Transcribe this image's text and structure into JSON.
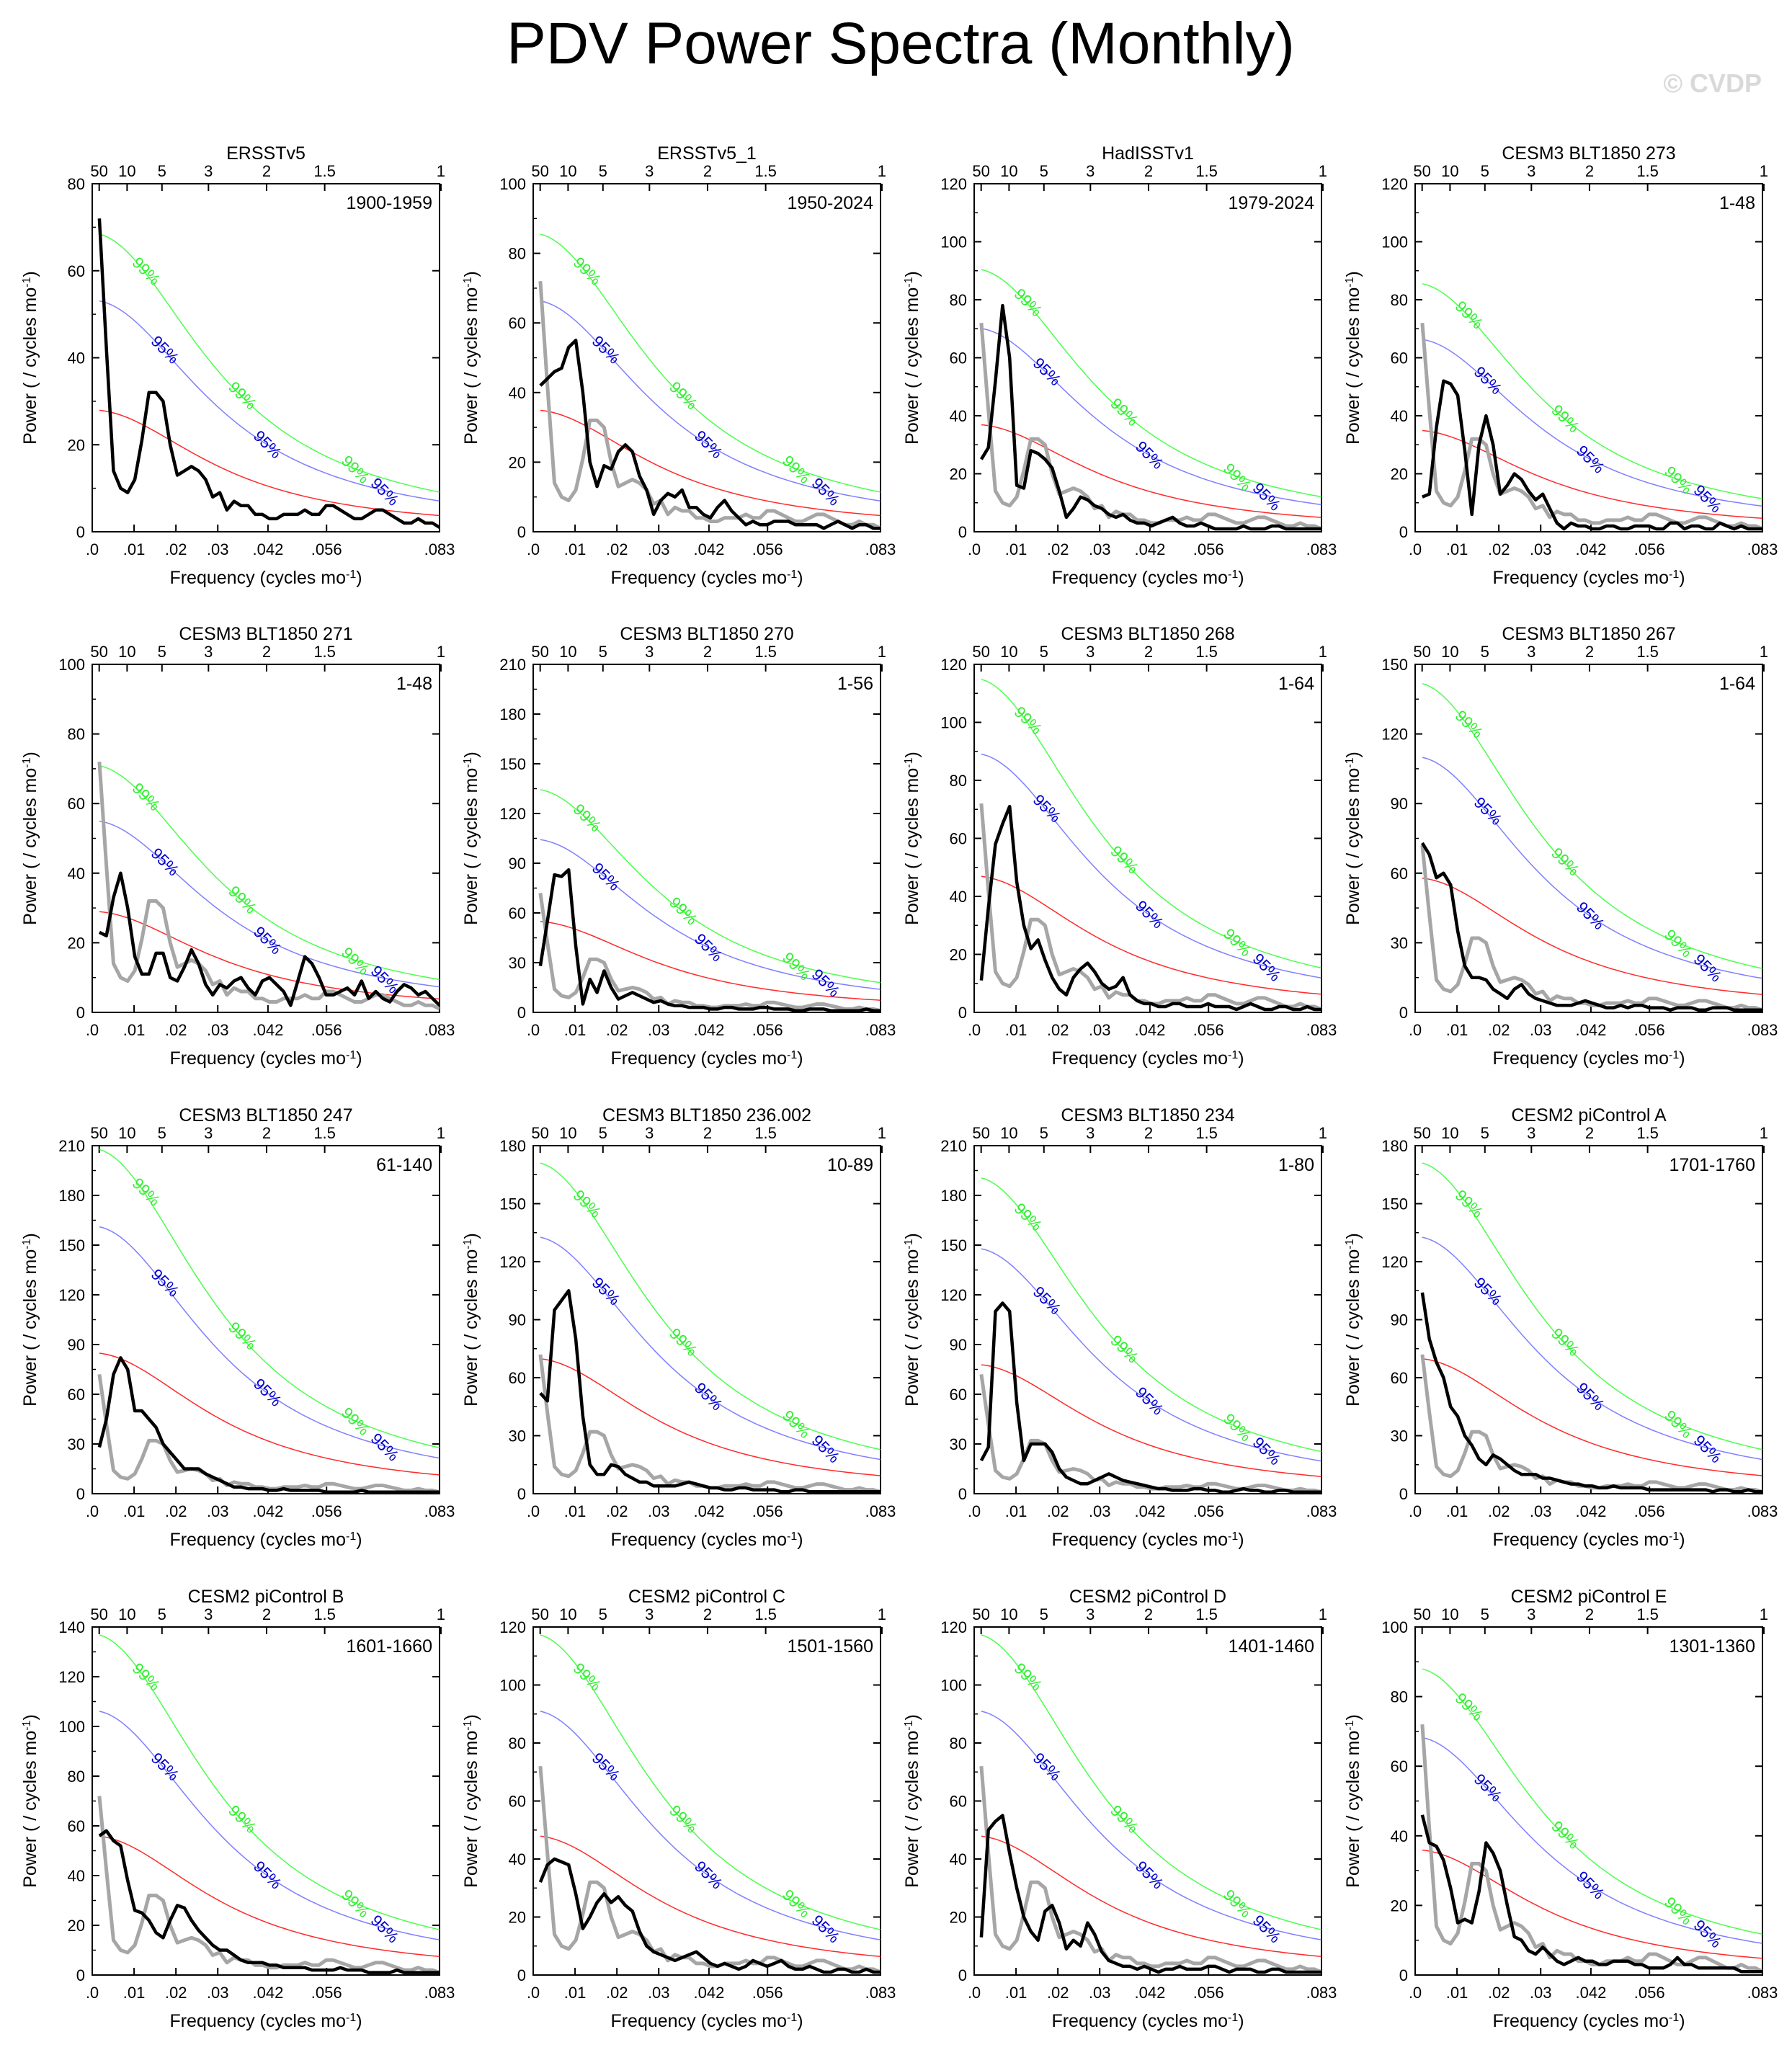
{
  "title": "PDV Power Spectra (Monthly)",
  "watermark": "© CVDP",
  "colors": {
    "spectrum": "#000000",
    "reference": "#a6a6a6",
    "red_noise": "#ff2a2a",
    "ci95": "#7f7fff",
    "ci99": "#4cff4c",
    "label95": "#0000cc",
    "label99": "#33ee33"
  },
  "axis_labels": {
    "x": "Frequency (cycles mo",
    "y": "Power ( / cycles mo",
    "sup": "-1",
    "close": ")"
  },
  "x_ticks": [
    ".0",
    ".01",
    ".02",
    ".03",
    ".042",
    ".056",
    ".083"
  ],
  "x_tick_values": [
    0,
    0.01,
    0.02,
    0.03,
    0.042,
    0.056,
    0.083
  ],
  "period_ticks": [
    "50",
    "10",
    "5",
    "3",
    "2",
    "1.5",
    "1"
  ],
  "ci_labels": {
    "c95": "95%",
    "c99": "99%"
  },
  "panels": [
    {
      "title": "ERSSTv5",
      "years": "1900-1959",
      "ymax": 80,
      "ystep": 20,
      "rn0": 28,
      "spec": [
        72,
        42,
        14,
        10,
        9,
        12,
        21,
        32,
        32,
        30,
        20,
        13,
        14,
        15,
        14,
        12,
        8,
        9,
        5,
        7,
        6,
        6,
        4,
        4,
        3,
        3,
        4,
        4,
        4,
        5,
        4,
        4,
        6,
        6,
        5,
        4,
        3,
        3,
        4,
        5,
        5,
        4,
        3,
        2,
        2,
        3,
        2,
        2,
        1
      ]
    },
    {
      "title": "ERSSTv5_1",
      "years": "1950-2024",
      "ymax": 100,
      "ystep": 20,
      "rn0": 35,
      "spec": [
        42,
        44,
        46,
        47,
        53,
        55,
        40,
        20,
        13,
        19,
        18,
        23,
        25,
        23,
        16,
        12,
        5,
        9,
        11,
        10,
        12,
        7,
        7,
        5,
        4,
        7,
        9,
        6,
        4,
        2,
        3,
        2,
        2,
        3,
        3,
        3,
        2,
        2,
        2,
        2,
        1,
        2,
        3,
        2,
        1,
        2,
        2,
        1,
        1
      ]
    },
    {
      "title": "HadISSTv1",
      "years": "1979-2024",
      "ymax": 120,
      "ystep": 20,
      "rn0": 37,
      "spec": [
        25,
        29,
        52,
        78,
        60,
        16,
        15,
        28,
        27,
        25,
        22,
        14,
        5,
        8,
        12,
        11,
        9,
        8,
        6,
        5,
        6,
        4,
        3,
        3,
        2,
        3,
        4,
        5,
        3,
        2,
        2,
        3,
        2,
        1,
        1,
        1,
        1,
        2,
        1,
        1,
        1,
        2,
        2,
        1,
        1,
        1,
        1,
        1,
        1
      ]
    },
    {
      "title": "CESM3 BLT1850 273",
      "years": "1-48",
      "ymax": 120,
      "ystep": 20,
      "rn0": 35,
      "spec": [
        12,
        13,
        36,
        52,
        51,
        47,
        28,
        6,
        30,
        40,
        30,
        13,
        16,
        20,
        18,
        14,
        11,
        13,
        8,
        3,
        1,
        3,
        2,
        2,
        1,
        1,
        2,
        2,
        1,
        1,
        2,
        2,
        2,
        1,
        1,
        3,
        3,
        1,
        2,
        2,
        1,
        1,
        3,
        2,
        1,
        2,
        1,
        1,
        1
      ]
    },
    {
      "title": "CESM3 BLT1850 271",
      "years": "1-48",
      "ymax": 100,
      "ystep": 20,
      "rn0": 29,
      "spec": [
        23,
        22,
        33,
        40,
        30,
        16,
        11,
        11,
        17,
        17,
        10,
        9,
        13,
        18,
        14,
        8,
        5,
        8,
        7,
        9,
        10,
        7,
        5,
        9,
        10,
        8,
        6,
        2,
        9,
        16,
        14,
        10,
        5,
        5,
        6,
        7,
        5,
        9,
        4,
        6,
        4,
        3,
        6,
        8,
        7,
        5,
        6,
        4,
        2
      ]
    },
    {
      "title": "CESM3 BLT1850 270",
      "years": "1-56",
      "ymax": 210,
      "ystep": 30,
      "rn0": 55,
      "spec": [
        28,
        55,
        83,
        82,
        86,
        40,
        5,
        20,
        12,
        25,
        15,
        8,
        10,
        12,
        10,
        8,
        6,
        7,
        5,
        4,
        4,
        3,
        3,
        3,
        2,
        2,
        3,
        3,
        2,
        2,
        2,
        3,
        3,
        2,
        2,
        2,
        1,
        1,
        2,
        2,
        2,
        1,
        1,
        1,
        1,
        1,
        2,
        1,
        1
      ]
    },
    {
      "title": "CESM3 BLT1850 268",
      "years": "1-64",
      "ymax": 120,
      "ystep": 20,
      "rn0": 47,
      "spec": [
        11,
        36,
        58,
        65,
        71,
        45,
        30,
        22,
        25,
        18,
        12,
        8,
        6,
        12,
        15,
        17,
        14,
        10,
        8,
        9,
        12,
        6,
        4,
        3,
        3,
        2,
        2,
        3,
        3,
        2,
        2,
        2,
        3,
        2,
        2,
        2,
        1,
        2,
        3,
        2,
        1,
        1,
        2,
        2,
        1,
        1,
        2,
        1,
        1
      ]
    },
    {
      "title": "CESM3 BLT1850 267",
      "years": "1-64",
      "ymax": 150,
      "ystep": 30,
      "rn0": 58,
      "spec": [
        73,
        68,
        58,
        60,
        55,
        35,
        20,
        15,
        15,
        14,
        10,
        8,
        6,
        10,
        12,
        8,
        6,
        5,
        4,
        3,
        3,
        3,
        4,
        5,
        4,
        3,
        2,
        2,
        3,
        2,
        3,
        3,
        2,
        2,
        2,
        1,
        2,
        2,
        2,
        1,
        1,
        2,
        2,
        2,
        1,
        1,
        1,
        1,
        1
      ]
    },
    {
      "title": "CESM3 BLT1850 247",
      "years": "61-140",
      "ymax": 210,
      "ystep": 30,
      "rn0": 85,
      "spec": [
        28,
        45,
        72,
        82,
        75,
        50,
        50,
        45,
        40,
        30,
        25,
        20,
        15,
        15,
        15,
        12,
        10,
        8,
        6,
        4,
        4,
        3,
        3,
        3,
        2,
        2,
        3,
        2,
        2,
        2,
        2,
        2,
        1,
        1,
        1,
        1,
        1,
        2,
        1,
        1,
        1,
        1,
        1,
        1,
        1,
        1,
        1,
        1,
        1
      ]
    },
    {
      "title": "CESM3 BLT1850 236.002",
      "years": "10-89",
      "ymax": 180,
      "ystep": 30,
      "rn0": 70,
      "spec": [
        52,
        48,
        95,
        100,
        105,
        80,
        40,
        15,
        10,
        10,
        15,
        14,
        10,
        8,
        6,
        6,
        4,
        4,
        4,
        4,
        5,
        6,
        5,
        4,
        3,
        3,
        2,
        2,
        3,
        3,
        2,
        2,
        2,
        2,
        1,
        1,
        2,
        2,
        1,
        1,
        1,
        1,
        1,
        1,
        1,
        1,
        1,
        1,
        1
      ]
    },
    {
      "title": "CESM3 BLT1850 234",
      "years": "1-80",
      "ymax": 210,
      "ystep": 30,
      "rn0": 78,
      "spec": [
        20,
        28,
        110,
        115,
        110,
        55,
        20,
        30,
        30,
        30,
        25,
        15,
        10,
        8,
        6,
        6,
        8,
        10,
        12,
        10,
        8,
        7,
        6,
        5,
        4,
        3,
        3,
        2,
        2,
        2,
        3,
        3,
        2,
        2,
        1,
        1,
        2,
        3,
        2,
        2,
        1,
        1,
        2,
        2,
        1,
        1,
        1,
        1,
        1
      ]
    },
    {
      "title": "CESM2 piControl A",
      "years": "1701-1760",
      "ymax": 180,
      "ystep": 30,
      "rn0": 70,
      "spec": [
        104,
        80,
        68,
        60,
        45,
        40,
        30,
        25,
        18,
        15,
        20,
        18,
        15,
        12,
        10,
        10,
        10,
        8,
        8,
        7,
        6,
        5,
        5,
        4,
        4,
        3,
        3,
        4,
        3,
        3,
        3,
        3,
        2,
        2,
        2,
        2,
        2,
        2,
        2,
        2,
        2,
        1,
        2,
        2,
        1,
        1,
        2,
        1,
        1
      ]
    },
    {
      "title": "CESM2 piControl B",
      "years": "1601-1660",
      "ymax": 140,
      "ystep": 20,
      "rn0": 56,
      "spec": [
        56,
        58,
        54,
        52,
        38,
        26,
        25,
        22,
        17,
        15,
        22,
        28,
        27,
        22,
        18,
        15,
        12,
        10,
        10,
        8,
        6,
        5,
        5,
        5,
        4,
        4,
        3,
        3,
        3,
        3,
        2,
        2,
        2,
        2,
        3,
        2,
        2,
        2,
        1,
        1,
        1,
        1,
        2,
        1,
        1,
        1,
        1,
        1,
        1
      ]
    },
    {
      "title": "CESM2 piControl C",
      "years": "1501-1560",
      "ymax": 120,
      "ystep": 20,
      "rn0": 48,
      "spec": [
        32,
        38,
        40,
        39,
        38,
        28,
        16,
        20,
        25,
        28,
        25,
        27,
        24,
        22,
        15,
        10,
        8,
        7,
        6,
        5,
        6,
        7,
        8,
        6,
        4,
        3,
        4,
        3,
        2,
        3,
        5,
        4,
        3,
        4,
        5,
        3,
        2,
        2,
        3,
        2,
        1,
        1,
        2,
        2,
        1,
        1,
        2,
        1,
        1
      ]
    },
    {
      "title": "CESM2 piControl D",
      "years": "1401-1460",
      "ymax": 120,
      "ystep": 20,
      "rn0": 48,
      "spec": [
        13,
        50,
        53,
        55,
        42,
        30,
        20,
        15,
        12,
        22,
        24,
        18,
        9,
        12,
        10,
        18,
        14,
        8,
        5,
        4,
        3,
        3,
        2,
        3,
        2,
        1,
        2,
        2,
        3,
        2,
        2,
        2,
        3,
        3,
        2,
        1,
        2,
        2,
        2,
        1,
        1,
        2,
        2,
        1,
        1,
        1,
        1,
        1,
        1
      ]
    },
    {
      "title": "CESM2 piControl E",
      "years": "1301-1360",
      "ymax": 100,
      "ystep": 20,
      "rn0": 36,
      "spec": [
        46,
        38,
        37,
        33,
        25,
        15,
        16,
        15,
        24,
        38,
        35,
        30,
        20,
        11,
        10,
        7,
        6,
        8,
        6,
        4,
        3,
        4,
        5,
        4,
        4,
        3,
        3,
        4,
        4,
        4,
        3,
        3,
        2,
        2,
        2,
        3,
        5,
        3,
        3,
        2,
        2,
        2,
        2,
        2,
        2,
        1,
        1,
        1,
        1
      ]
    }
  ],
  "chart_data": {
    "type": "line",
    "title": "PDV Power Spectra (Monthly)",
    "xlabel": "Frequency (cycles mo-1)",
    "ylabel": "Power ( / cycles mo-1)",
    "xlim": [
      0,
      0.083
    ],
    "reference_series": {
      "name": "ERSSTv5 1900-1959 (grey overlay, all panels except first)",
      "values": [
        72,
        42,
        14,
        10,
        9,
        12,
        21,
        32,
        32,
        30,
        20,
        13,
        14,
        15,
        14,
        12,
        8,
        9,
        5,
        7,
        6,
        6,
        4,
        4,
        3,
        3,
        4,
        4,
        4,
        5,
        4,
        4,
        6,
        6,
        5,
        4,
        3,
        3,
        4,
        5,
        5,
        4,
        3,
        2,
        2,
        3,
        2,
        2,
        1
      ]
    },
    "series_note": "Each panel: black = spectrum, red = red-noise fit, blue = 95% confidence, green = 99% confidence; spectra values listed in panels[].spec"
  }
}
